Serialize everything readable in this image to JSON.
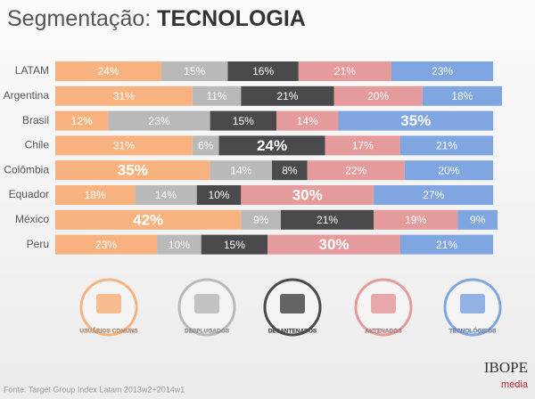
{
  "chart_data": {
    "type": "stacked-bar",
    "title": "Segmentação:",
    "title_highlight": "TECNOLOGIA",
    "categories": [
      "LATAM",
      "Argentina",
      "Brasil",
      "Chile",
      "Colômbia",
      "Equador",
      "México",
      "Peru"
    ],
    "series": [
      {
        "name": "USUÁRIOS COMUNS",
        "color": "#f8b27f",
        "values": [
          24,
          31,
          12,
          31,
          35,
          18,
          42,
          23
        ],
        "value_labels": [
          "24%",
          "31%",
          "12%",
          "31%",
          "35%",
          "18%",
          "42%",
          "23%"
        ]
      },
      {
        "name": "DESPLUGADOS",
        "color": "#b9b9b9",
        "values": [
          15,
          11,
          23,
          6,
          14,
          14,
          9,
          10
        ],
        "value_labels": [
          "15%",
          "11%",
          "23%",
          "6%",
          "14%",
          "14%",
          "9%",
          "10%"
        ]
      },
      {
        "name": "DESANTENADOS",
        "color": "#4a4a4c",
        "values": [
          16,
          21,
          15,
          24,
          8,
          10,
          21,
          15
        ],
        "value_labels": [
          "16%",
          "21%",
          "15%",
          "24%",
          "8%",
          "10%",
          "21%",
          "15%"
        ]
      },
      {
        "name": "ANTENADOS",
        "color": "#e59a9b",
        "values": [
          21,
          20,
          14,
          17,
          22,
          30,
          19,
          30
        ],
        "value_labels": [
          "21%",
          "20%",
          "14%",
          "17%",
          "22%",
          "30%",
          "19%",
          "30%"
        ]
      },
      {
        "name": "TECNOLÓGICOS",
        "color": "#80a6e2",
        "values": [
          23,
          18,
          35,
          21,
          20,
          27,
          9,
          21
        ],
        "value_labels": [
          "23%",
          "18%",
          "35%",
          "21%",
          "20%",
          "27%",
          "9%",
          "21%"
        ]
      }
    ],
    "bold_labels": [
      [
        2,
        4
      ],
      [
        3,
        2
      ],
      [
        4,
        0
      ],
      [
        5,
        3
      ],
      [
        6,
        0
      ],
      [
        7,
        3
      ]
    ],
    "xlim": [
      0,
      101
    ],
    "source": "Fonte: Target Group Index Latam 2013w2+2014w1",
    "brand": "IBOPE",
    "brand_sub": "media"
  }
}
